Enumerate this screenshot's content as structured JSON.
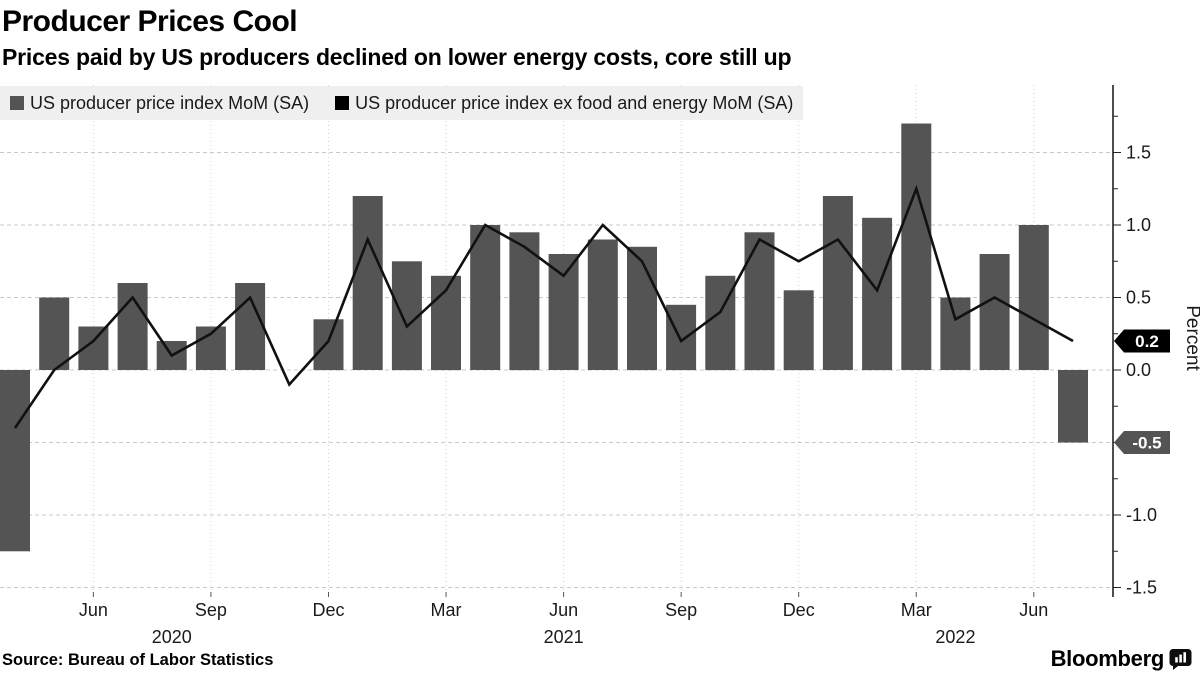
{
  "header": {
    "title": "Producer Prices Cool",
    "subtitle": "Prices paid by US producers declined on lower energy costs, core still up"
  },
  "legend": [
    {
      "label": "US producer price index MoM (SA)",
      "color": "#545454"
    },
    {
      "label": "US producer price index ex food and energy MoM (SA)",
      "color": "#000000"
    }
  ],
  "footer": {
    "source": "Source: Bureau of Labor Statistics",
    "brand": "Bloomberg"
  },
  "chart_data": {
    "type": "bar+line",
    "title": "Producer Prices Cool",
    "xlabel": "",
    "ylabel": "Percent",
    "grid": true,
    "legend_position": "top-left",
    "ylim": [
      -1.53,
      1.97
    ],
    "x": [
      "Apr 2020",
      "May 2020",
      "Jun 2020",
      "Jul 2020",
      "Aug 2020",
      "Sep 2020",
      "Oct 2020",
      "Nov 2020",
      "Dec 2020",
      "Jan 2021",
      "Feb 2021",
      "Mar 2021",
      "Apr 2021",
      "May 2021",
      "Jun 2021",
      "Jul 2021",
      "Aug 2021",
      "Sep 2021",
      "Oct 2021",
      "Nov 2021",
      "Dec 2021",
      "Jan 2022",
      "Feb 2022",
      "Mar 2022",
      "Apr 2022",
      "May 2022",
      "Jun 2022",
      "Jul 2022"
    ],
    "series": [
      {
        "name": "US producer price index MoM (SA)",
        "type": "bar",
        "color": "#545454",
        "values": [
          -1.25,
          0.5,
          0.3,
          0.6,
          0.2,
          0.3,
          0.6,
          0.0,
          0.35,
          1.2,
          0.75,
          0.65,
          1.0,
          0.95,
          0.8,
          0.9,
          0.85,
          0.45,
          0.65,
          0.95,
          0.55,
          1.2,
          1.05,
          1.7,
          0.5,
          0.8,
          1.0,
          -0.5
        ]
      },
      {
        "name": "US producer price index ex food and energy MoM (SA)",
        "type": "line",
        "color": "#111111",
        "values": [
          -0.4,
          0.0,
          0.2,
          0.5,
          0.1,
          0.25,
          0.5,
          -0.1,
          0.2,
          0.9,
          0.3,
          0.55,
          1.0,
          0.85,
          0.65,
          1.0,
          0.75,
          0.2,
          0.4,
          0.9,
          0.75,
          0.9,
          0.55,
          1.25,
          0.35,
          0.5,
          0.35,
          0.2
        ]
      }
    ],
    "yticks": [
      {
        "value": -1.5,
        "label": "-1.5"
      },
      {
        "value": -1.0,
        "label": "-1.0"
      },
      {
        "value": -0.5,
        "label": "-0.5"
      },
      {
        "value": 0.0,
        "label": "0.0"
      },
      {
        "value": 0.5,
        "label": "0.5"
      },
      {
        "value": 1.0,
        "label": "1.0"
      },
      {
        "value": 1.5,
        "label": "1.5"
      }
    ],
    "minor_tick_step": 0.25,
    "xticks": [
      {
        "index": 2,
        "label": "Jun"
      },
      {
        "index": 5,
        "label": "Sep"
      },
      {
        "index": 8,
        "label": "Dec"
      },
      {
        "index": 11,
        "label": "Mar"
      },
      {
        "index": 14,
        "label": "Jun"
      },
      {
        "index": 17,
        "label": "Sep"
      },
      {
        "index": 20,
        "label": "Dec"
      },
      {
        "index": 23,
        "label": "Mar"
      },
      {
        "index": 26,
        "label": "Jun"
      }
    ],
    "year_ticks": [
      {
        "index": 4,
        "label": "2020"
      },
      {
        "index": 14,
        "label": "2021"
      },
      {
        "index": 24,
        "label": "2022"
      }
    ],
    "end_badges": [
      {
        "series": "line",
        "value": 0.2,
        "label": "0.2",
        "bg": "#000000",
        "fg": "#ffffff"
      },
      {
        "series": "bar",
        "value": -0.5,
        "label": "-0.5",
        "bg": "#545454",
        "fg": "#ffffff"
      }
    ]
  }
}
